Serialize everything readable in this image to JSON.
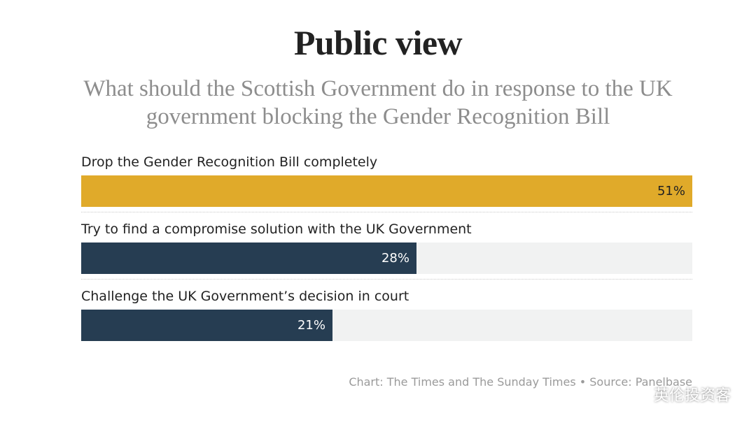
{
  "chart_data": {
    "type": "bar",
    "orientation": "horizontal",
    "title": "Public view",
    "subtitle": "What should the Scottish Government do in response to the UK government blocking the Gender Recognition Bill",
    "categories": [
      "Drop the Gender Recognition Bill completely",
      "Try to find a compromise solution with the UK Government",
      "Challenge the UK Government’s decision in court"
    ],
    "values": [
      51,
      28,
      21
    ],
    "value_labels": [
      "51%",
      "28%",
      "21%"
    ],
    "xlim": [
      0,
      51
    ],
    "colors": [
      "#e0aa2a",
      "#263d52",
      "#263d52"
    ],
    "label_colors": [
      "#222222",
      "#ffffff",
      "#ffffff"
    ],
    "track_color": "#f1f2f2",
    "grid": false,
    "legend": "none"
  },
  "footer": {
    "credit": "Chart: The Times and The Sunday Times • Source: Panelbase"
  },
  "watermark": {
    "text": "英伦投资客",
    "icon": "wechat-icon"
  }
}
